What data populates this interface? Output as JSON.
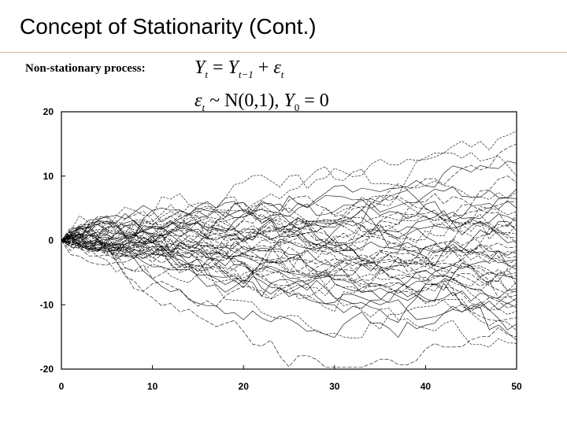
{
  "slide": {
    "title": "Concept of Stationarity (Cont.)",
    "subtitle": "Non-stationary process:",
    "equation1": {
      "lhs": "Y",
      "lhs_sub": "t",
      "eq": "=",
      "y": "Y",
      "y_sub": "t−1",
      "plus": "+",
      "eps": "ε",
      "eps_sub": "t"
    },
    "equation2": {
      "eps": "ε",
      "eps_sub": "t",
      "dist": "~ N(0,1), ",
      "y0": "Y",
      "y0_sub": "0",
      "rhs": "= 0"
    }
  },
  "chart_data": {
    "type": "line",
    "title": "",
    "xlabel": "",
    "ylabel": "",
    "xlim": [
      0,
      50
    ],
    "ylim": [
      -20,
      20
    ],
    "x_ticks": [
      0,
      10,
      20,
      30,
      40,
      50
    ],
    "y_ticks": [
      -20,
      -10,
      0,
      10,
      20
    ],
    "grid": false,
    "description_of_series": "50 simulated random walks Y_t = Y_{t-1} + e_t, e_t ~ N(0,1), Y_0 = 0, t = 0..50",
    "series_count": 50,
    "final_values": [
      17,
      15,
      12,
      10,
      9,
      8,
      7.5,
      6,
      5,
      4.5,
      4,
      3,
      2.5,
      2,
      1.5,
      1,
      0.5,
      0,
      -0.5,
      -1,
      -1.5,
      -2,
      -2.5,
      -3,
      -3.5,
      -4,
      -4.5,
      -5,
      -5.5,
      -6,
      -6.5,
      -7,
      -7.5,
      -8,
      -8.5,
      -9,
      -9.5,
      -10,
      -10.5,
      -11,
      -12,
      -13,
      -14,
      -15,
      -15.5,
      -16,
      -3,
      6.5,
      3.5,
      -7.8
    ]
  }
}
